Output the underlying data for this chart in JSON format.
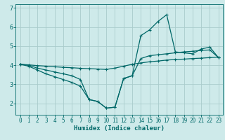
{
  "title": "",
  "xlabel": "Humidex (Indice chaleur)",
  "ylabel": "",
  "background_color": "#ceeaea",
  "grid_color": "#aacccc",
  "line_color": "#006868",
  "spine_color": "#006868",
  "xlim": [
    -0.5,
    23.5
  ],
  "ylim": [
    1.4,
    7.2
  ],
  "xticks": [
    0,
    1,
    2,
    3,
    4,
    5,
    6,
    7,
    8,
    9,
    10,
    11,
    12,
    13,
    14,
    15,
    16,
    17,
    18,
    19,
    20,
    21,
    22,
    23
  ],
  "yticks": [
    2,
    3,
    4,
    5,
    6,
    7
  ],
  "x": [
    0,
    1,
    2,
    3,
    4,
    5,
    6,
    7,
    8,
    9,
    10,
    11,
    12,
    13,
    14,
    15,
    16,
    17,
    18,
    19,
    20,
    21,
    22,
    23
  ],
  "line1": [
    4.05,
    4.02,
    3.98,
    3.95,
    3.92,
    3.89,
    3.87,
    3.84,
    3.82,
    3.8,
    3.78,
    3.85,
    3.95,
    4.05,
    4.12,
    4.18,
    4.22,
    4.27,
    4.3,
    4.32,
    4.35,
    4.37,
    4.4,
    4.42
  ],
  "line2": [
    4.05,
    4.0,
    3.85,
    3.75,
    3.65,
    3.55,
    3.45,
    3.25,
    2.2,
    2.1,
    1.75,
    1.8,
    3.3,
    3.45,
    5.55,
    5.85,
    6.3,
    6.65,
    4.7,
    4.65,
    4.6,
    4.85,
    4.95,
    4.4
  ],
  "line3": [
    4.05,
    3.95,
    3.75,
    3.55,
    3.4,
    3.25,
    3.1,
    2.9,
    2.2,
    2.1,
    1.75,
    1.8,
    3.3,
    3.45,
    4.35,
    4.5,
    4.55,
    4.6,
    4.65,
    4.7,
    4.73,
    4.78,
    4.8,
    4.4
  ],
  "tick_fontsize": 5.5,
  "xlabel_fontsize": 6.5,
  "marker": "+",
  "markersize": 3.0,
  "linewidth": 0.9
}
